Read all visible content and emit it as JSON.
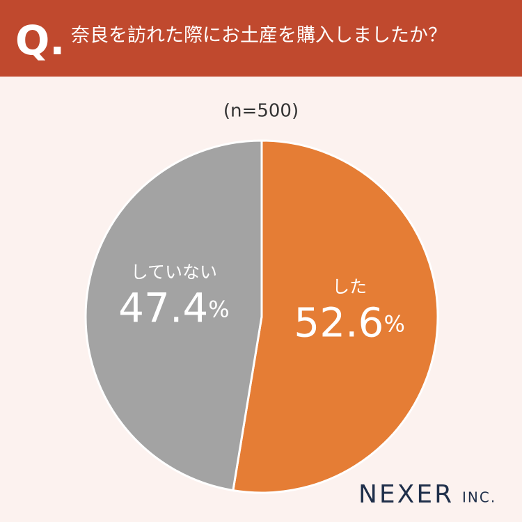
{
  "header": {
    "marker": "Q.",
    "question": "奈良を訪れた際にお土産を購入しましたか？"
  },
  "chart_data": {
    "type": "pie",
    "subtitle": "(n=500)",
    "categories": [
      "した",
      "していない"
    ],
    "values": [
      52.6,
      47.4
    ],
    "value_labels": [
      "52.6%",
      "47.4%"
    ],
    "colors": [
      "#e57d35",
      "#a3a3a3"
    ]
  },
  "logo": {
    "name": "NEXER",
    "suffix": "INC."
  }
}
